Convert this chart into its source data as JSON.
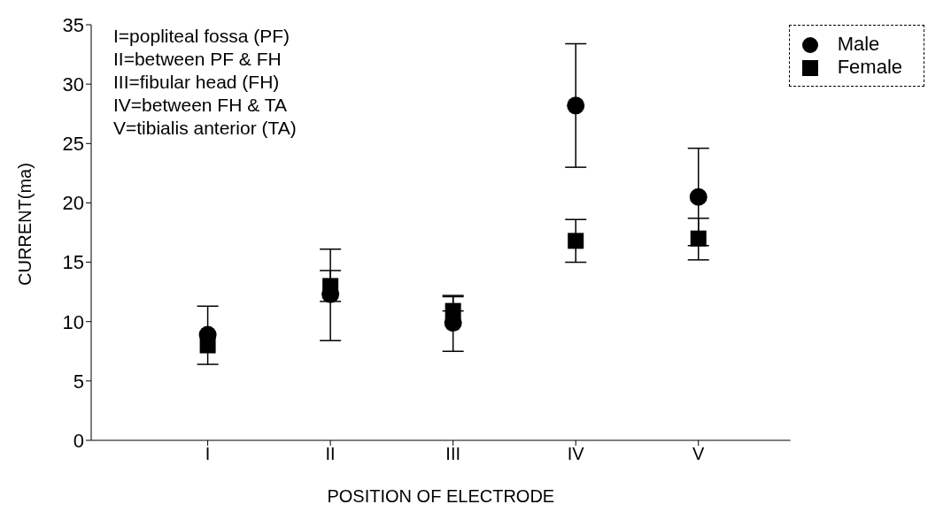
{
  "chart_data": {
    "type": "scatter",
    "xlabel": "POSITION OF ELECTRODE",
    "ylabel": "CURRENT(ma)",
    "categories": [
      "I",
      "II",
      "III",
      "IV",
      "V"
    ],
    "series": [
      {
        "name": "Male",
        "color": "#000000",
        "marker": "circle",
        "values": [
          8.9,
          12.3,
          9.9,
          28.2,
          20.5
        ],
        "errors": [
          [
            6.4,
            11.3
          ],
          [
            8.4,
            16.1
          ],
          [
            7.5,
            12.1
          ],
          [
            23.0,
            33.4
          ],
          [
            16.4,
            24.6
          ]
        ]
      },
      {
        "name": "Female",
        "color": "#000000",
        "marker": "square",
        "values": [
          8.0,
          13.0,
          10.9,
          16.8,
          17.0
        ],
        "errors": [
          null,
          [
            11.7,
            14.3
          ],
          [
            10.9,
            12.2
          ],
          [
            15.0,
            18.6
          ],
          [
            15.2,
            18.7
          ]
        ]
      }
    ],
    "ylim": [
      0,
      35
    ],
    "yticks": [
      0,
      5,
      10,
      15,
      20,
      25,
      30,
      35
    ],
    "grid": false,
    "legend": "top right",
    "annotations": [
      "I=popliteal fossa (PF)",
      "II=between PF & FH",
      "III=fibular head (FH)",
      "IV=between FH & TA",
      "V=tibialis anterior (TA)"
    ]
  }
}
